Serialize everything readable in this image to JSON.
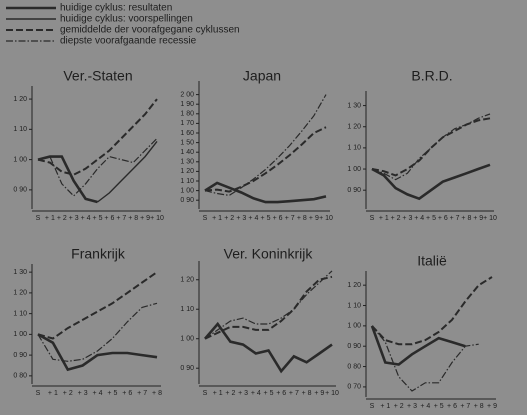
{
  "legend": [
    {
      "name": "huidige cyklus: resultaten",
      "style": "thick"
    },
    {
      "name": "huidige cyklus: voorspellingen",
      "style": "solid"
    },
    {
      "name": "gemiddelde der voorafgegane cyklussen",
      "style": "dashed"
    },
    {
      "name": "diepste voorafgaande recessie",
      "style": "dashdot"
    }
  ],
  "chart_data": [
    {
      "type": "line",
      "title": "Ver.-Staten",
      "categories": [
        "S",
        "+ 1",
        "+ 2",
        "+ 3",
        "+ 4",
        "+ 5",
        "+ 6",
        "+ 7",
        "+ 8",
        "+ 9",
        "+ 10"
      ],
      "ylim": [
        85,
        123
      ],
      "yticks": [
        {
          "value": 90,
          "label": "0 90"
        },
        {
          "value": 100,
          "label": "1 00"
        },
        {
          "value": 110,
          "label": "1 10"
        },
        {
          "value": 120,
          "label": "1 20"
        }
      ],
      "series": [
        {
          "style": "dashed",
          "color": "#2a2a2a",
          "values": [
            100,
            99,
            96,
            95,
            97,
            100,
            103,
            107,
            111,
            115,
            120
          ]
        },
        {
          "style": "dashdot",
          "color": "#2a2a2a",
          "values": [
            100,
            101,
            92,
            88,
            92,
            97,
            101,
            100,
            99,
            103,
            107
          ]
        },
        {
          "style": "thick",
          "color": "#2a2a2a",
          "values": [
            100,
            101,
            101,
            93,
            87,
            86,
            null,
            null,
            null,
            null,
            null
          ]
        },
        {
          "style": "solid",
          "color": "#2a2a2a",
          "values": [
            null,
            null,
            null,
            null,
            null,
            86,
            89,
            93,
            97,
            101,
            106
          ]
        }
      ]
    },
    {
      "type": "line",
      "title": "Japan",
      "categories": [
        "S",
        "+ 1",
        "+ 2",
        "+ 3",
        "+ 4",
        "+ 5",
        "+ 6",
        "+ 7",
        "+ 8",
        "+ 9",
        "+ 10"
      ],
      "ylim": [
        85,
        210
      ],
      "yticks": [
        {
          "value": 90,
          "label": "0 90"
        },
        {
          "value": 100,
          "label": "1 00"
        },
        {
          "value": 110,
          "label": "1 10"
        },
        {
          "value": 120,
          "label": "1 20"
        },
        {
          "value": 130,
          "label": "1 30"
        },
        {
          "value": 140,
          "label": "1 40"
        },
        {
          "value": 150,
          "label": "1 50"
        },
        {
          "value": 160,
          "label": "1 60"
        },
        {
          "value": 170,
          "label": "1 70"
        },
        {
          "value": 180,
          "label": "1 80"
        },
        {
          "value": 190,
          "label": "1 90"
        },
        {
          "value": 200,
          "label": "2 00"
        }
      ],
      "series": [
        {
          "style": "dashed",
          "color": "#2a2a2a",
          "values": [
            100,
            101,
            99,
            104,
            110,
            118,
            127,
            137,
            148,
            160,
            166
          ]
        },
        {
          "style": "dashdot",
          "color": "#2a2a2a",
          "values": [
            100,
            97,
            95,
            103,
            112,
            122,
            134,
            147,
            162,
            178,
            200
          ]
        },
        {
          "style": "thick",
          "color": "#2a2a2a",
          "values": [
            100,
            108,
            103,
            98,
            92,
            88,
            88,
            89,
            90,
            91,
            94
          ]
        }
      ]
    },
    {
      "type": "line",
      "title": "B.R.D.",
      "categories": [
        "S",
        "+ 1",
        "+ 2",
        "+ 3",
        "+ 4",
        "+ 5",
        "+ 6",
        "+ 7",
        "+ 8",
        "+ 9",
        "+ 10"
      ],
      "ylim": [
        83,
        135
      ],
      "yticks": [
        {
          "value": 90,
          "label": "0 90"
        },
        {
          "value": 100,
          "label": "1 00"
        },
        {
          "value": 110,
          "label": "1 10"
        },
        {
          "value": 120,
          "label": "1 20"
        },
        {
          "value": 130,
          "label": "1 30"
        }
      ],
      "series": [
        {
          "style": "dashed",
          "color": "#2a2a2a",
          "values": [
            100,
            99,
            97,
            100,
            104,
            110,
            115,
            118,
            121,
            123,
            124
          ]
        },
        {
          "style": "dashdot",
          "color": "#2a2a2a",
          "values": [
            100,
            98,
            95,
            98,
            105,
            110,
            115,
            119,
            121,
            124,
            126
          ]
        },
        {
          "style": "thick",
          "color": "#2a2a2a",
          "values": [
            100,
            97,
            91,
            88,
            86,
            90,
            94,
            96,
            98,
            100,
            102
          ]
        }
      ]
    },
    {
      "type": "line",
      "title": "Frankrijk",
      "categories": [
        "S",
        "+ 1",
        "+ 2",
        "+ 3",
        "+ 4",
        "+ 5",
        "+ 6",
        "+ 7",
        "+ 8"
      ],
      "ylim": [
        78,
        132
      ],
      "yticks": [
        {
          "value": 80,
          "label": "0 80"
        },
        {
          "value": 90,
          "label": "0 90"
        },
        {
          "value": 100,
          "label": "1 00"
        },
        {
          "value": 110,
          "label": "1 10"
        },
        {
          "value": 120,
          "label": "1 20"
        },
        {
          "value": 130,
          "label": "1 30"
        }
      ],
      "series": [
        {
          "style": "dashed",
          "color": "#2a2a2a",
          "values": [
            100,
            98,
            103,
            107,
            111,
            115,
            120,
            125,
            130
          ]
        },
        {
          "style": "dashdot",
          "color": "#2a2a2a",
          "values": [
            100,
            88,
            87,
            88,
            92,
            98,
            106,
            113,
            115
          ]
        },
        {
          "style": "thick",
          "color": "#2a2a2a",
          "values": [
            100,
            96,
            83,
            85,
            90,
            91,
            91,
            90,
            89
          ]
        }
      ]
    },
    {
      "type": "line",
      "title": "Ver. Koninkrijk",
      "categories": [
        "S",
        "+ 1",
        "+ 2",
        "+ 3",
        "+ 4",
        "+ 5",
        "+ 6",
        "+ 7",
        "+ 8",
        "+ 9",
        "+ 10"
      ],
      "ylim": [
        86,
        125
      ],
      "yticks": [
        {
          "value": 90,
          "label": "0 90"
        },
        {
          "value": 100,
          "label": "1 00"
        },
        {
          "value": 110,
          "label": "1 10"
        },
        {
          "value": 120,
          "label": "1 20"
        }
      ],
      "series": [
        {
          "style": "dashed",
          "color": "#2a2a2a",
          "values": [
            100,
            102,
            104,
            104,
            103,
            103,
            106,
            110,
            116,
            120,
            121
          ]
        },
        {
          "style": "dashdot",
          "color": "#2a2a2a",
          "values": [
            100,
            103,
            106,
            107,
            105,
            105,
            107,
            110,
            115,
            119,
            123
          ]
        },
        {
          "style": "thick",
          "color": "#2a2a2a",
          "values": [
            100,
            105,
            99,
            98,
            95,
            96,
            89,
            94,
            92,
            95,
            98
          ]
        }
      ]
    },
    {
      "type": "line",
      "title": "Italië",
      "categories": [
        "S",
        "+ 1",
        "+ 2",
        "+ 3",
        "+ 4",
        "+ 5",
        "+ 6",
        "+ 7",
        "+ 8",
        "+ 9"
      ],
      "ylim": [
        67,
        125
      ],
      "yticks": [
        {
          "value": 70,
          "label": "0 70"
        },
        {
          "value": 80,
          "label": "0 80"
        },
        {
          "value": 90,
          "label": "0 90"
        },
        {
          "value": 100,
          "label": "1 00"
        },
        {
          "value": 110,
          "label": "1 10"
        },
        {
          "value": 120,
          "label": "1 20"
        }
      ],
      "series": [
        {
          "style": "dashed",
          "color": "#2a2a2a",
          "values": [
            100,
            93,
            91,
            91,
            93,
            97,
            103,
            112,
            120,
            124
          ]
        },
        {
          "style": "dashdot",
          "color": "#2a2a2a",
          "values": [
            100,
            92,
            75,
            68,
            72,
            72,
            82,
            90,
            91,
            null
          ]
        },
        {
          "style": "thick",
          "color": "#2a2a2a",
          "values": [
            100,
            82,
            81,
            86,
            90,
            94,
            92,
            90,
            null,
            null
          ]
        }
      ]
    }
  ]
}
